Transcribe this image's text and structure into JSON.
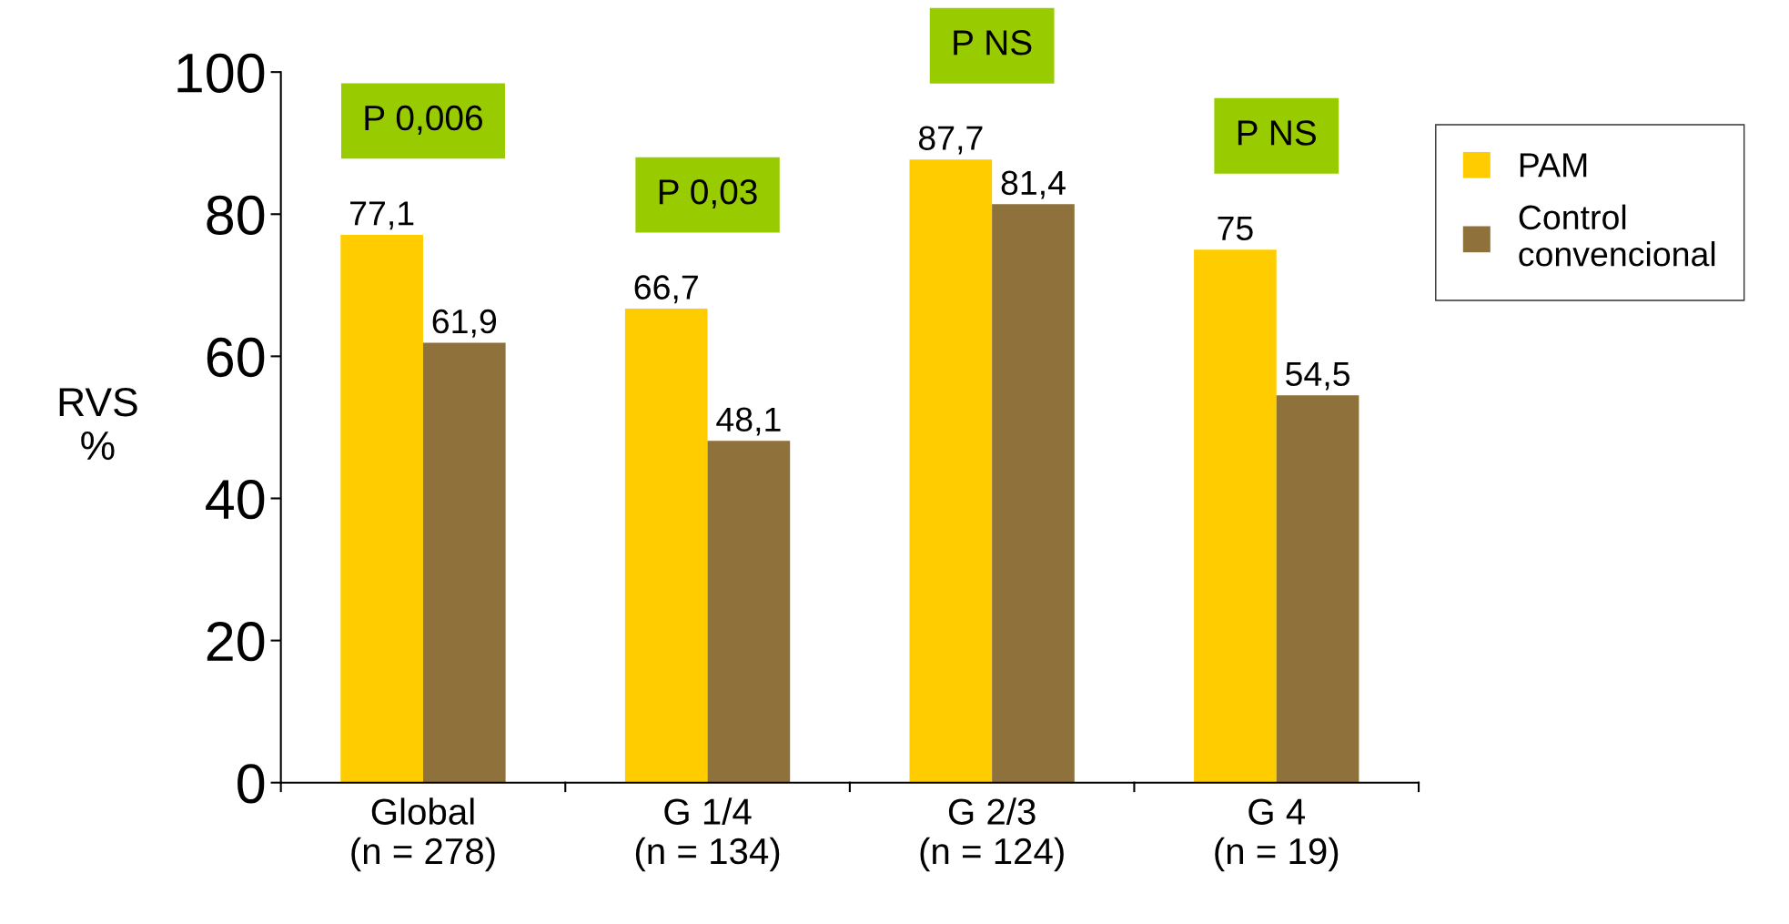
{
  "chart_data": {
    "type": "bar",
    "ylabel": "RVS\n%",
    "categories": [
      "Global\n(n = 278)",
      "G 1/4\n(n = 134)",
      "G 2/3\n(n = 124)",
      "G 4\n(n = 19)"
    ],
    "series": [
      {
        "name": "PAM",
        "color": "#ffcc00",
        "values": [
          77.1,
          66.7,
          87.7,
          75
        ],
        "value_labels": [
          "77,1",
          "66,7",
          "87,7",
          "75"
        ]
      },
      {
        "name": "Control\nconvencional",
        "color": "#8f713b",
        "values": [
          61.9,
          48.1,
          81.4,
          54.5
        ],
        "value_labels": [
          "61,9",
          "48,1",
          "81,4",
          "54,5"
        ]
      }
    ],
    "ylim": [
      0,
      100
    ],
    "yticks": [
      0,
      20,
      40,
      60,
      80,
      100
    ],
    "annotations": [
      "P 0,006",
      "P 0,03",
      "P NS",
      "P NS"
    ],
    "grid": false,
    "legend": "right"
  }
}
